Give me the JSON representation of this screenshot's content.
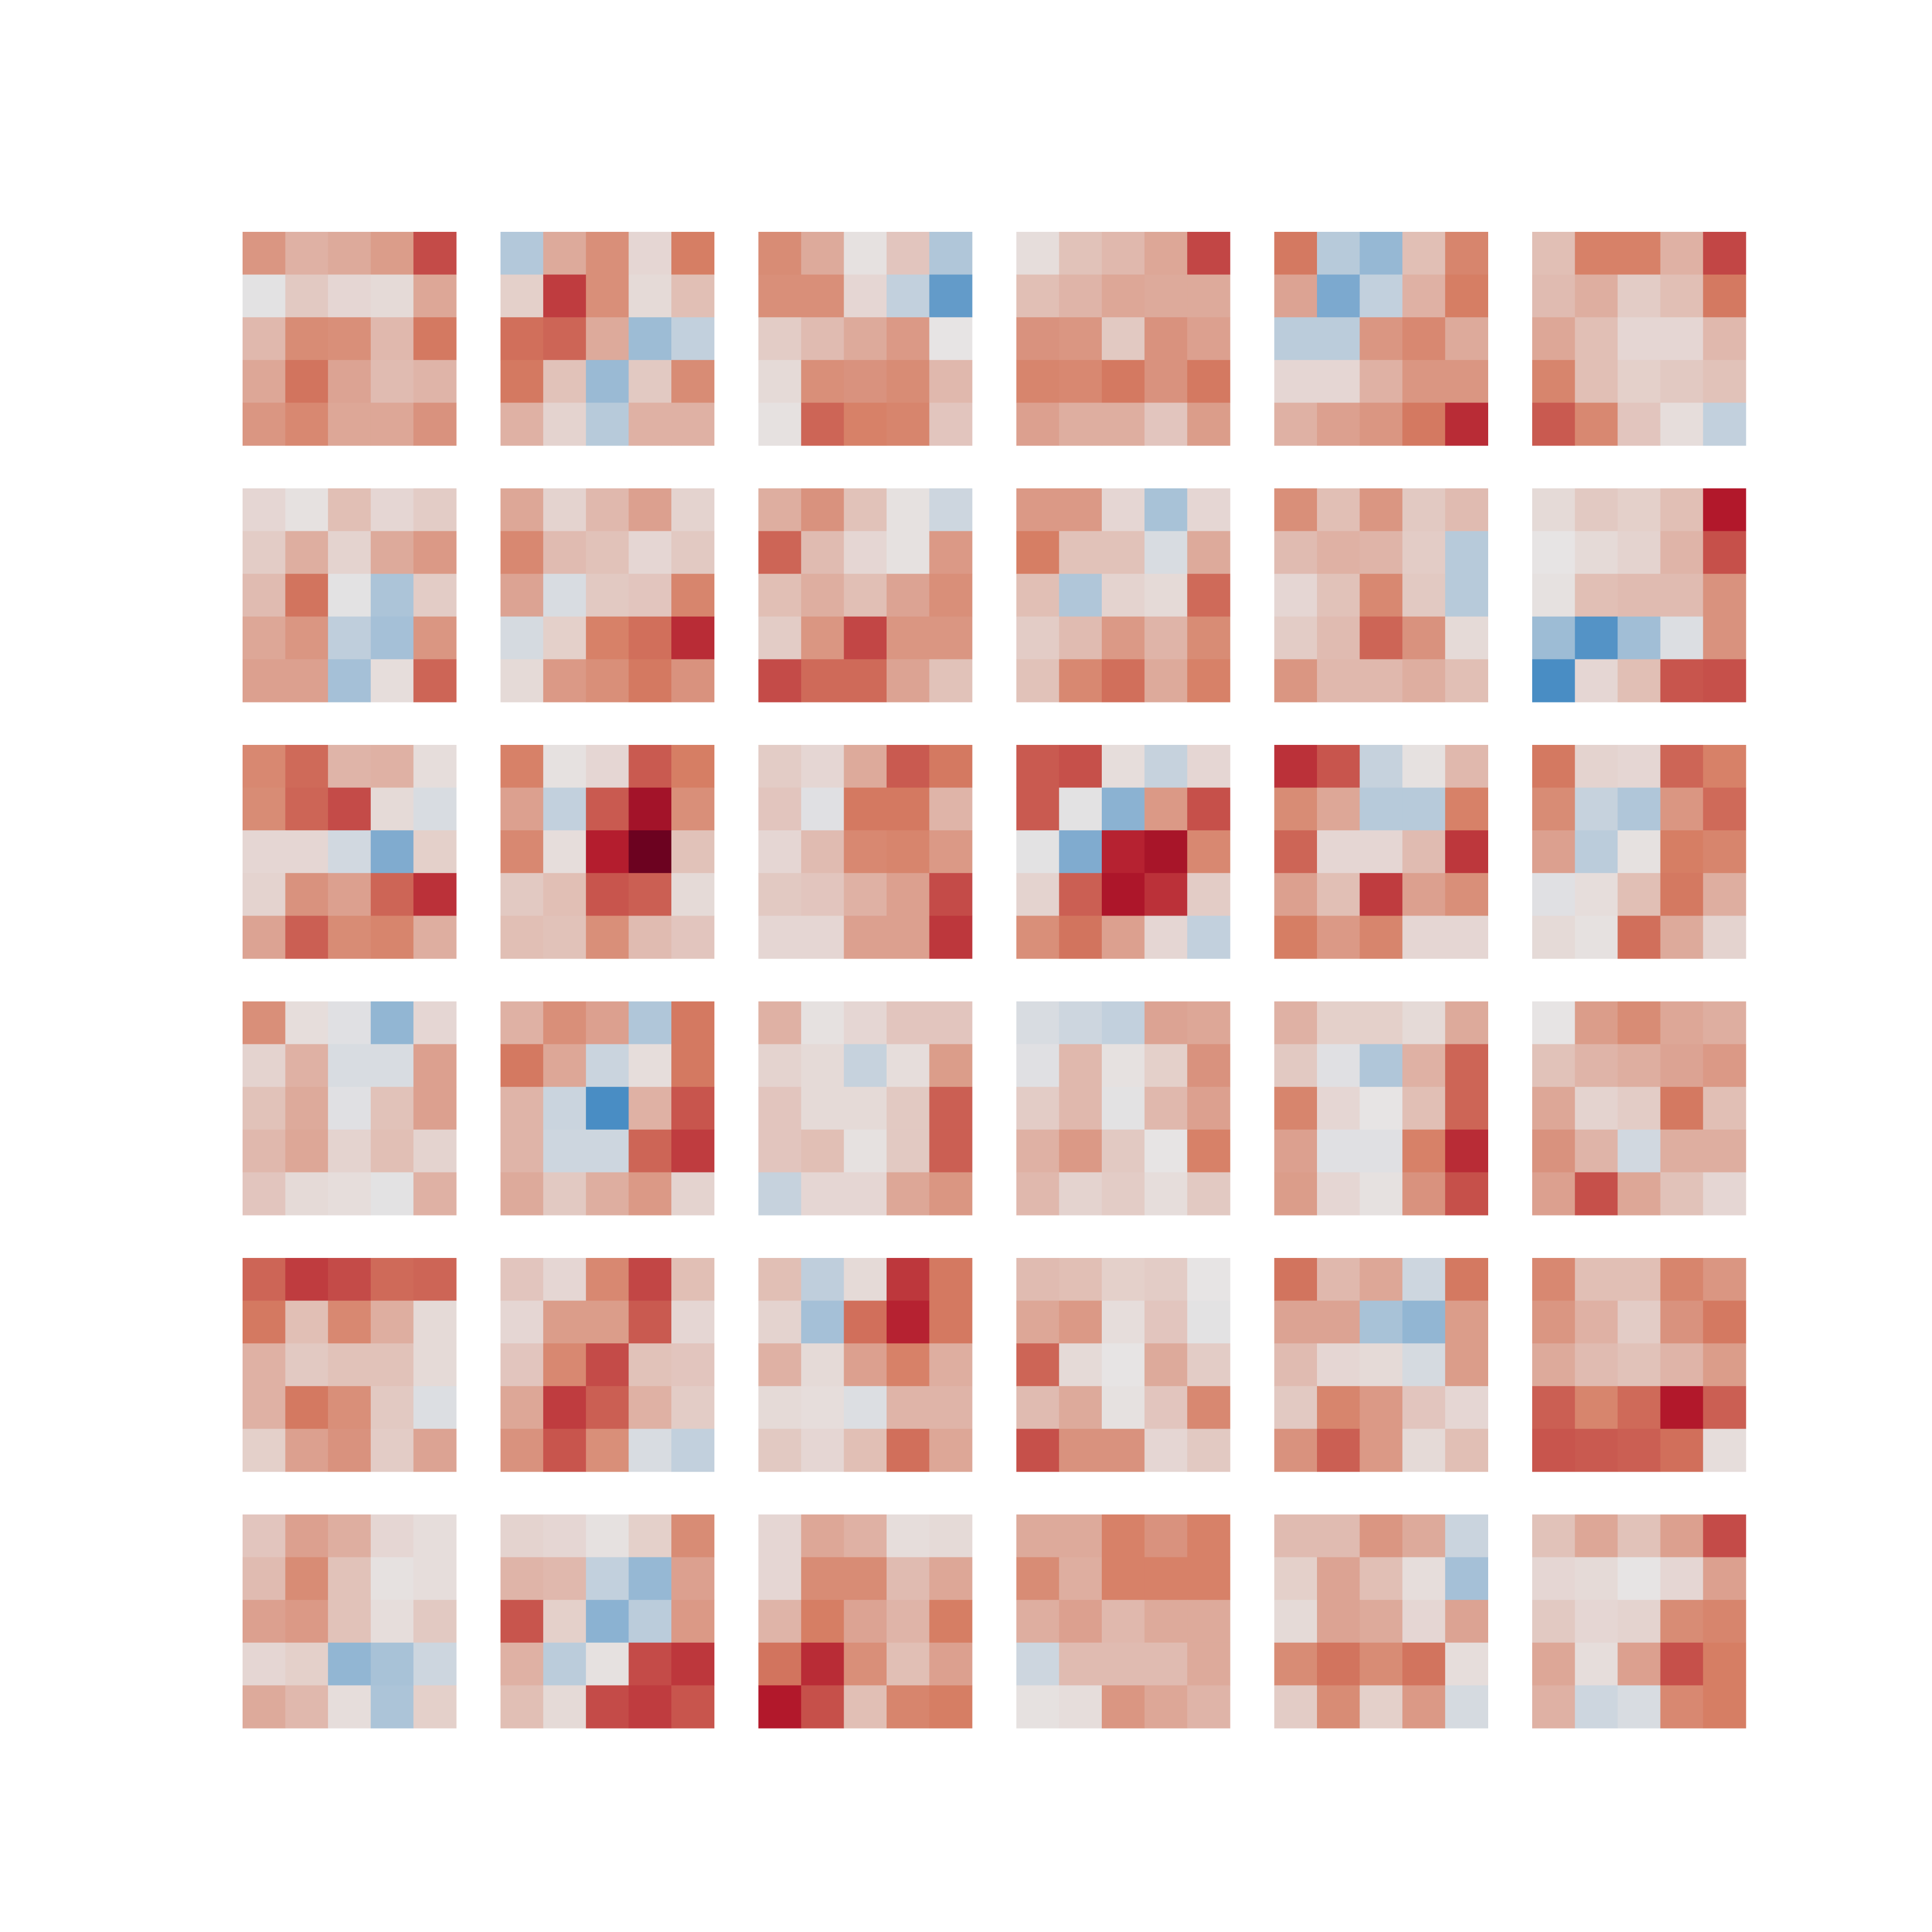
{
  "chart_data": {
    "type": "heatmap",
    "title": "",
    "grid": false,
    "colormap": "diverging",
    "colors": {
      "negative": "#2f7fbf",
      "neutral": "#e7e4e4",
      "positive": "#b2182b",
      "extreme_positive": "#67001f"
    },
    "value_range": [
      -1,
      1
    ],
    "grid_layout": {
      "rows": 6,
      "cols": 6
    },
    "panel_shape": {
      "rows": 5,
      "cols": 5
    },
    "panels": [
      [
        [
          0.46,
          0.3,
          0.34,
          0.42,
          0.8
        ],
        [
          -0.02,
          0.16,
          0.08,
          0.06,
          0.36
        ],
        [
          0.26,
          0.52,
          0.5,
          0.26,
          0.62
        ],
        [
          0.36,
          0.64,
          0.38,
          0.24,
          0.28
        ],
        [
          0.46,
          0.54,
          0.36,
          0.36,
          0.48
        ]
      ],
      [
        [
          -0.28,
          0.34,
          0.5,
          0.08,
          0.6
        ],
        [
          0.12,
          0.86,
          0.5,
          0.06,
          0.22
        ],
        [
          0.66,
          0.7,
          0.34,
          -0.4,
          -0.2
        ],
        [
          0.62,
          0.2,
          -0.42,
          0.16,
          0.52
        ],
        [
          0.3,
          0.1,
          -0.26,
          0.3,
          0.3
        ]
      ],
      [
        [
          0.52,
          0.34,
          0.02,
          0.18,
          -0.3
        ],
        [
          0.5,
          0.5,
          0.08,
          -0.2,
          -0.72
        ],
        [
          0.14,
          0.24,
          0.34,
          0.44,
          0.0
        ],
        [
          0.06,
          0.5,
          0.48,
          0.52,
          0.26
        ],
        [
          0.02,
          0.7,
          0.58,
          0.56,
          0.18
        ]
      ],
      [
        [
          0.04,
          0.2,
          0.26,
          0.36,
          0.82
        ],
        [
          0.22,
          0.28,
          0.36,
          0.34,
          0.34
        ],
        [
          0.48,
          0.46,
          0.16,
          0.48,
          0.4
        ],
        [
          0.56,
          0.54,
          0.62,
          0.48,
          0.62
        ],
        [
          0.4,
          0.32,
          0.32,
          0.18,
          0.42
        ]
      ],
      [
        [
          0.62,
          -0.26,
          -0.44,
          0.22,
          0.56
        ],
        [
          0.38,
          -0.58,
          -0.2,
          0.3,
          0.6
        ],
        [
          -0.24,
          -0.24,
          0.46,
          0.54,
          0.34
        ],
        [
          0.08,
          0.08,
          0.3,
          0.46,
          0.46
        ],
        [
          0.3,
          0.4,
          0.46,
          0.62,
          0.92
        ]
      ],
      [
        [
          0.22,
          0.58,
          0.58,
          0.3,
          0.82
        ],
        [
          0.24,
          0.32,
          0.14,
          0.22,
          0.62
        ],
        [
          0.36,
          0.22,
          0.08,
          0.08,
          0.26
        ],
        [
          0.56,
          0.22,
          0.12,
          0.16,
          0.2
        ],
        [
          0.74,
          0.54,
          0.18,
          0.04,
          -0.2
        ]
      ],
      [
        [
          0.08,
          0.02,
          0.22,
          0.08,
          0.14
        ],
        [
          0.14,
          0.32,
          0.1,
          0.34,
          0.44
        ],
        [
          0.24,
          0.64,
          -0.02,
          -0.32,
          0.14
        ],
        [
          0.36,
          0.46,
          -0.22,
          -0.36,
          0.46
        ],
        [
          0.4,
          0.4,
          -0.36,
          0.04,
          0.7
        ]
      ],
      [
        [
          0.36,
          0.1,
          0.26,
          0.4,
          0.1
        ],
        [
          0.54,
          0.24,
          0.2,
          0.08,
          0.16
        ],
        [
          0.38,
          -0.08,
          0.16,
          0.18,
          0.56
        ],
        [
          -0.1,
          0.12,
          0.58,
          0.66,
          0.92
        ],
        [
          0.06,
          0.44,
          0.5,
          0.62,
          0.48
        ]
      ],
      [
        [
          0.32,
          0.48,
          0.2,
          0.02,
          -0.14
        ],
        [
          0.7,
          0.24,
          0.08,
          0.02,
          0.44
        ],
        [
          0.22,
          0.32,
          0.22,
          0.38,
          0.5
        ],
        [
          0.14,
          0.46,
          0.82,
          0.46,
          0.46
        ],
        [
          0.8,
          0.68,
          0.68,
          0.38,
          0.2
        ]
      ],
      [
        [
          0.44,
          0.44,
          0.08,
          -0.34,
          0.08
        ],
        [
          0.6,
          0.2,
          0.2,
          -0.08,
          0.34
        ],
        [
          0.22,
          -0.3,
          0.1,
          0.06,
          0.68
        ],
        [
          0.14,
          0.24,
          0.44,
          0.28,
          0.52
        ],
        [
          0.2,
          0.54,
          0.66,
          0.34,
          0.58
        ]
      ],
      [
        [
          0.5,
          0.22,
          0.46,
          0.16,
          0.24
        ],
        [
          0.24,
          0.3,
          0.28,
          0.14,
          -0.26
        ],
        [
          0.08,
          0.2,
          0.54,
          0.16,
          -0.26
        ],
        [
          0.14,
          0.24,
          0.7,
          0.48,
          0.06
        ],
        [
          0.46,
          0.26,
          0.26,
          0.32,
          0.22
        ]
      ],
      [
        [
          0.06,
          0.16,
          0.12,
          0.22,
          1.0
        ],
        [
          0.0,
          0.06,
          0.1,
          0.28,
          0.78
        ],
        [
          0.02,
          0.22,
          0.24,
          0.24,
          0.48
        ],
        [
          -0.4,
          -0.8,
          -0.38,
          -0.06,
          0.48
        ],
        [
          -0.86,
          0.08,
          0.22,
          0.76,
          0.78
        ]
      ],
      [
        [
          0.54,
          0.68,
          0.28,
          0.3,
          0.04
        ],
        [
          0.52,
          0.7,
          0.8,
          0.06,
          -0.08
        ],
        [
          0.08,
          0.08,
          -0.12,
          -0.56,
          0.12
        ],
        [
          0.1,
          0.48,
          0.4,
          0.7,
          0.9
        ],
        [
          0.38,
          0.72,
          0.52,
          0.56,
          0.32
        ]
      ],
      [
        [
          0.58,
          0.02,
          0.08,
          0.74,
          0.6
        ],
        [
          0.4,
          -0.2,
          0.74,
          1.06,
          0.5
        ],
        [
          0.54,
          0.04,
          0.98,
          1.28,
          0.2
        ],
        [
          0.16,
          0.22,
          0.76,
          0.72,
          0.06
        ],
        [
          0.22,
          0.2,
          0.5,
          0.24,
          0.18
        ]
      ],
      [
        [
          0.14,
          0.08,
          0.34,
          0.74,
          0.62
        ],
        [
          0.18,
          -0.04,
          0.62,
          0.62,
          0.28
        ],
        [
          0.08,
          0.24,
          0.54,
          0.56,
          0.44
        ],
        [
          0.16,
          0.18,
          0.3,
          0.4,
          0.8
        ],
        [
          0.08,
          0.08,
          0.4,
          0.4,
          0.88
        ]
      ],
      [
        [
          0.74,
          0.78,
          0.04,
          -0.18,
          0.08
        ],
        [
          0.74,
          -0.02,
          -0.5,
          0.44,
          0.78
        ],
        [
          -0.02,
          -0.56,
          0.96,
          1.04,
          0.54
        ],
        [
          0.1,
          0.72,
          1.02,
          0.9,
          0.14
        ],
        [
          0.5,
          0.64,
          0.4,
          0.08,
          -0.2
        ]
      ],
      [
        [
          0.9,
          0.76,
          -0.18,
          0.02,
          0.26
        ],
        [
          0.52,
          0.36,
          -0.26,
          -0.26,
          0.58
        ],
        [
          0.7,
          0.08,
          0.08,
          0.24,
          0.88
        ],
        [
          0.4,
          0.22,
          0.86,
          0.4,
          0.5
        ],
        [
          0.6,
          0.44,
          0.56,
          0.08,
          0.08
        ]
      ],
      [
        [
          0.62,
          0.1,
          0.08,
          0.7,
          0.58
        ],
        [
          0.52,
          -0.18,
          -0.3,
          0.46,
          0.68
        ],
        [
          0.4,
          -0.24,
          0.02,
          0.6,
          0.56
        ],
        [
          -0.04,
          0.04,
          0.22,
          0.62,
          0.32
        ],
        [
          0.06,
          0.02,
          0.66,
          0.34,
          0.1
        ]
      ],
      [
        [
          0.5,
          0.04,
          -0.04,
          -0.46,
          0.08
        ],
        [
          0.1,
          0.3,
          -0.08,
          -0.08,
          0.4
        ],
        [
          0.2,
          0.34,
          -0.04,
          0.2,
          0.4
        ],
        [
          0.26,
          0.36,
          0.1,
          0.22,
          0.1
        ],
        [
          0.18,
          0.06,
          0.04,
          -0.02,
          0.3
        ]
      ],
      [
        [
          0.3,
          0.5,
          0.4,
          -0.3,
          0.62
        ],
        [
          0.62,
          0.36,
          -0.16,
          0.04,
          0.62
        ],
        [
          0.28,
          -0.16,
          -0.86,
          0.3,
          0.76
        ],
        [
          0.28,
          -0.14,
          -0.14,
          0.7,
          0.86
        ],
        [
          0.34,
          0.16,
          0.32,
          0.44,
          0.1
        ]
      ],
      [
        [
          0.3,
          0.02,
          0.08,
          0.18,
          0.18
        ],
        [
          0.1,
          0.06,
          -0.18,
          0.04,
          0.42
        ],
        [
          0.18,
          0.06,
          0.06,
          0.16,
          0.72
        ],
        [
          0.18,
          0.22,
          0.02,
          0.16,
          0.72
        ],
        [
          -0.18,
          0.08,
          0.08,
          0.36,
          0.46
        ]
      ],
      [
        [
          -0.08,
          -0.14,
          -0.2,
          0.38,
          0.36
        ],
        [
          -0.04,
          0.26,
          0.02,
          0.12,
          0.48
        ],
        [
          0.14,
          0.26,
          -0.02,
          0.26,
          0.4
        ],
        [
          0.3,
          0.44,
          0.16,
          0.0,
          0.58
        ],
        [
          0.26,
          0.1,
          0.14,
          0.04,
          0.16
        ]
      ],
      [
        [
          0.3,
          0.12,
          0.12,
          0.06,
          0.34
        ],
        [
          0.16,
          -0.04,
          -0.3,
          0.3,
          0.7
        ],
        [
          0.56,
          0.08,
          0.0,
          0.22,
          0.7
        ],
        [
          0.4,
          -0.04,
          -0.04,
          0.58,
          0.92
        ],
        [
          0.42,
          0.08,
          0.02,
          0.48,
          0.78
        ]
      ],
      [
        [
          0.0,
          0.42,
          0.52,
          0.36,
          0.32
        ],
        [
          0.2,
          0.28,
          0.32,
          0.38,
          0.44
        ],
        [
          0.36,
          0.1,
          0.14,
          0.62,
          0.22
        ],
        [
          0.48,
          0.28,
          -0.12,
          0.32,
          0.32
        ],
        [
          0.4,
          0.78,
          0.36,
          0.2,
          0.08
        ]
      ],
      [
        [
          0.7,
          0.86,
          0.8,
          0.68,
          0.7
        ],
        [
          0.62,
          0.22,
          0.54,
          0.32,
          0.06
        ],
        [
          0.3,
          0.16,
          0.2,
          0.2,
          0.06
        ],
        [
          0.3,
          0.62,
          0.5,
          0.16,
          -0.06
        ],
        [
          0.12,
          0.4,
          0.48,
          0.14,
          0.38
        ]
      ],
      [
        [
          0.18,
          0.08,
          0.54,
          0.82,
          0.22
        ],
        [
          0.08,
          0.42,
          0.42,
          0.74,
          0.08
        ],
        [
          0.18,
          0.54,
          0.8,
          0.2,
          0.18
        ],
        [
          0.36,
          0.86,
          0.72,
          0.3,
          0.14
        ],
        [
          0.48,
          0.76,
          0.5,
          -0.08,
          -0.2
        ]
      ],
      [
        [
          0.22,
          -0.22,
          0.06,
          0.88,
          0.62
        ],
        [
          0.1,
          -0.36,
          0.66,
          0.96,
          0.62
        ],
        [
          0.3,
          0.06,
          0.4,
          0.58,
          0.32
        ],
        [
          0.06,
          0.04,
          -0.06,
          0.28,
          0.28
        ],
        [
          0.16,
          0.08,
          0.22,
          0.66,
          0.36
        ]
      ],
      [
        [
          0.24,
          0.22,
          0.12,
          0.14,
          0.0
        ],
        [
          0.36,
          0.44,
          0.04,
          0.18,
          -0.02
        ],
        [
          0.7,
          0.06,
          0.0,
          0.34,
          0.14
        ],
        [
          0.24,
          0.34,
          0.02,
          0.18,
          0.54
        ],
        [
          0.78,
          0.48,
          0.48,
          0.08,
          0.16
        ]
      ],
      [
        [
          0.64,
          0.26,
          0.36,
          -0.14,
          0.62
        ],
        [
          0.38,
          0.38,
          -0.34,
          -0.46,
          0.42
        ],
        [
          0.24,
          0.08,
          0.06,
          -0.1,
          0.42
        ],
        [
          0.16,
          0.56,
          0.44,
          0.18,
          0.08
        ],
        [
          0.48,
          0.72,
          0.44,
          0.06,
          0.22
        ]
      ],
      [
        [
          0.54,
          0.22,
          0.22,
          0.56,
          0.46
        ],
        [
          0.46,
          0.3,
          0.14,
          0.48,
          0.62
        ],
        [
          0.34,
          0.24,
          0.2,
          0.28,
          0.42
        ],
        [
          0.72,
          0.56,
          0.68,
          1.0,
          0.72
        ],
        [
          0.76,
          0.74,
          0.72,
          0.66,
          0.04
        ]
      ],
      [
        [
          0.18,
          0.4,
          0.32,
          0.08,
          0.04
        ],
        [
          0.24,
          0.52,
          0.2,
          0.02,
          0.04
        ],
        [
          0.4,
          0.44,
          0.2,
          0.04,
          0.16
        ],
        [
          0.08,
          0.12,
          -0.46,
          -0.34,
          -0.14
        ],
        [
          0.34,
          0.26,
          0.04,
          -0.32,
          0.12
        ]
      ],
      [
        [
          0.1,
          0.08,
          0.02,
          0.12,
          0.52
        ],
        [
          0.28,
          0.26,
          -0.2,
          -0.44,
          0.4
        ],
        [
          0.76,
          0.12,
          -0.5,
          -0.24,
          0.44
        ],
        [
          0.3,
          -0.24,
          0.02,
          0.8,
          0.88
        ],
        [
          0.22,
          0.06,
          0.8,
          0.86,
          0.76
        ]
      ],
      [
        [
          0.08,
          0.36,
          0.3,
          0.04,
          0.06
        ],
        [
          0.08,
          0.52,
          0.52,
          0.24,
          0.36
        ],
        [
          0.28,
          0.6,
          0.38,
          0.28,
          0.6
        ],
        [
          0.64,
          0.92,
          0.5,
          0.22,
          0.4
        ],
        [
          1.0,
          0.78,
          0.22,
          0.56,
          0.6
        ]
      ],
      [
        [
          0.34,
          0.34,
          0.58,
          0.48,
          0.58
        ],
        [
          0.52,
          0.32,
          0.58,
          0.58,
          0.58
        ],
        [
          0.32,
          0.4,
          0.26,
          0.34,
          0.34
        ],
        [
          -0.14,
          0.24,
          0.24,
          0.24,
          0.34
        ],
        [
          0.02,
          0.04,
          0.46,
          0.36,
          0.28
        ]
      ],
      [
        [
          0.24,
          0.24,
          0.46,
          0.34,
          -0.16
        ],
        [
          0.12,
          0.38,
          0.22,
          0.04,
          -0.36
        ],
        [
          0.06,
          0.38,
          0.34,
          0.08,
          0.38
        ],
        [
          0.52,
          0.64,
          0.52,
          0.64,
          0.04
        ],
        [
          0.14,
          0.52,
          0.12,
          0.44,
          -0.1
        ]
      ],
      [
        [
          0.2,
          0.36,
          0.2,
          0.4,
          0.8
        ],
        [
          0.08,
          0.06,
          0.0,
          0.08,
          0.4
        ],
        [
          0.16,
          0.08,
          0.1,
          0.52,
          0.56
        ],
        [
          0.36,
          0.04,
          0.4,
          0.78,
          0.6
        ],
        [
          0.3,
          -0.14,
          -0.08,
          0.54,
          0.6
        ]
      ]
    ]
  }
}
